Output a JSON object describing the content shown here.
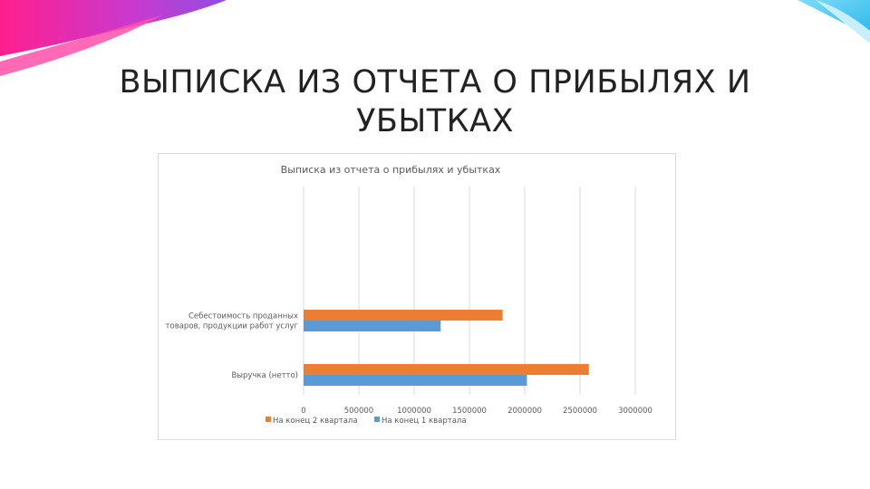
{
  "slide": {
    "title": "ВЫПИСКА ИЗ ОТЧЕТА О ПРИБЫЛЯХ И УБЫТКАХ"
  },
  "colors": {
    "accent_magenta": "#ff1f8e",
    "accent_purple": "#8f4fe0",
    "accent_cyan": "#35c8f2"
  },
  "chart_data": {
    "type": "bar",
    "orientation": "horizontal",
    "title": "Выписка из отчета о прибылях и убытках",
    "categories": [
      [
        "Себестоимость проданных",
        "товаров, продукции работ услуг"
      ],
      [
        "Выручка (нетто)"
      ]
    ],
    "series": [
      {
        "name": "На конец 2 квартала",
        "color": "#ed7d31",
        "values": [
          1800000,
          2580000
        ]
      },
      {
        "name": "На конец 1 квартала",
        "color": "#5b9bd5",
        "values": [
          1240000,
          2020000
        ]
      }
    ],
    "xlim": [
      0,
      3000000
    ],
    "xticks": [
      "0",
      "500000",
      "1000000",
      "1500000",
      "2000000",
      "2500000",
      "3000000"
    ],
    "grid": true,
    "legend_position": "bottom"
  }
}
